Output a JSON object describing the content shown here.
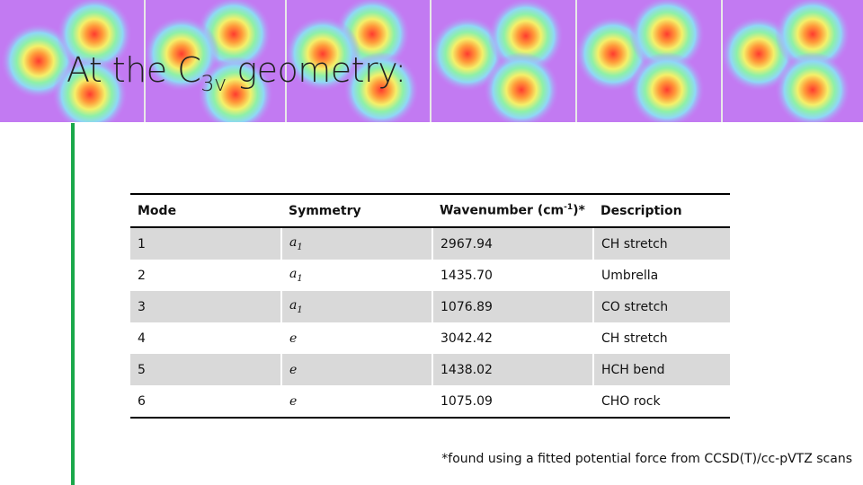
{
  "title": {
    "text": "At the C",
    "subscript": "3v",
    "tail": " geometry:"
  },
  "table": {
    "header": [
      "Mode",
      "Symmetry",
      {
        "text": "Wavenumber (cm",
        "superscript": "-1",
        "tail": ")*"
      },
      "Description"
    ],
    "rows": [
      [
        "1",
        {
          "base": "a",
          "subscript": "1"
        },
        "2967.94",
        "CH stretch"
      ],
      [
        "2",
        {
          "base": "a",
          "subscript": "1"
        },
        "1435.70",
        "Umbrella"
      ],
      [
        "3",
        {
          "base": "a",
          "subscript": "1"
        },
        "1076.89",
        "CO stretch"
      ],
      [
        "4",
        {
          "base": "e"
        },
        "3042.42",
        "CH stretch"
      ],
      [
        "5",
        {
          "base": "e"
        },
        "1438.02",
        "HCH bend"
      ],
      [
        "6",
        {
          "base": "e"
        },
        "1075.09",
        "CHO rock"
      ]
    ]
  },
  "footnote": "*found using a fitted potential force from CCSD(T)/cc-pVTZ scans"
}
